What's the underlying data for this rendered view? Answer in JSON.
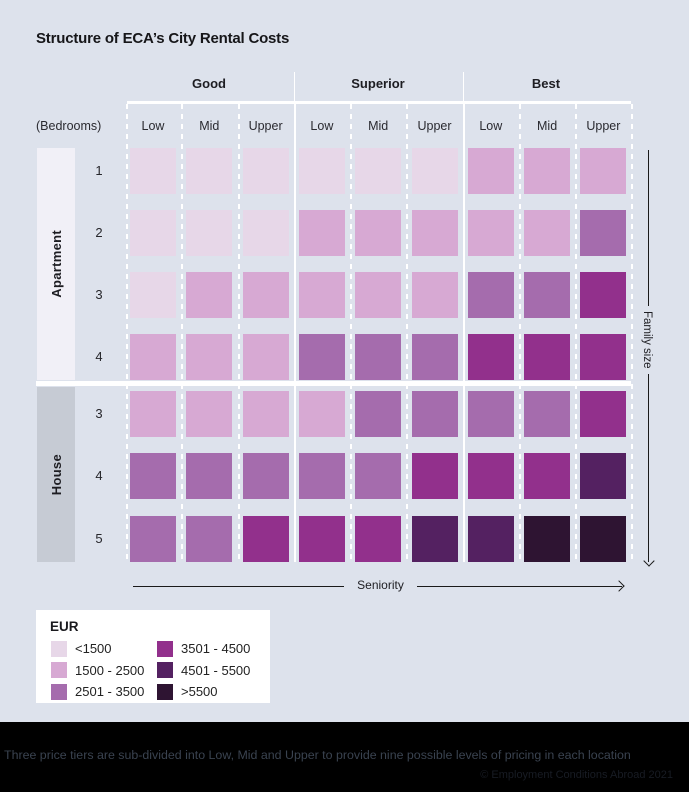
{
  "title": "Structure of ECA’s City Rental Costs",
  "chart_data": {
    "type": "heatmap",
    "title": "Structure of ECA’s City Rental Costs",
    "col_groups": [
      "Good",
      "Superior",
      "Best"
    ],
    "col_subs": [
      "Low",
      "Mid",
      "Upper"
    ],
    "columns": [
      "Good Low",
      "Good Mid",
      "Good Upper",
      "Superior Low",
      "Superior Mid",
      "Superior Upper",
      "Best Low",
      "Best Mid",
      "Best Upper"
    ],
    "row_axis_label": "(Bedrooms)",
    "x_axis_label": "Seniority",
    "y_axis_label": "Family size",
    "sections": [
      {
        "name": "Apartment",
        "rows": [
          {
            "bedrooms": "1",
            "bands": [
              1,
              1,
              1,
              1,
              1,
              1,
              2,
              2,
              2
            ]
          },
          {
            "bedrooms": "2",
            "bands": [
              1,
              1,
              1,
              2,
              2,
              2,
              2,
              2,
              3
            ]
          },
          {
            "bedrooms": "3",
            "bands": [
              1,
              2,
              2,
              2,
              2,
              2,
              3,
              3,
              4
            ]
          },
          {
            "bedrooms": "4",
            "bands": [
              2,
              2,
              2,
              3,
              3,
              3,
              4,
              4,
              4
            ]
          }
        ]
      },
      {
        "name": "House",
        "rows": [
          {
            "bedrooms": "3",
            "bands": [
              2,
              2,
              2,
              2,
              3,
              3,
              3,
              3,
              4
            ]
          },
          {
            "bedrooms": "4",
            "bands": [
              3,
              3,
              3,
              3,
              3,
              4,
              4,
              4,
              5
            ]
          },
          {
            "bedrooms": "5",
            "bands": [
              3,
              3,
              4,
              4,
              4,
              5,
              5,
              6,
              6
            ]
          }
        ]
      }
    ],
    "legend": {
      "title": "EUR",
      "position": "bottom-left",
      "entries": [
        {
          "band": 1,
          "label": "<1500",
          "color": "#e7d7e8"
        },
        {
          "band": 2,
          "label": "1500 - 2500",
          "color": "#d7a9d3"
        },
        {
          "band": 3,
          "label": "2501 - 3500",
          "color": "#a56cad"
        },
        {
          "band": 4,
          "label": "3501 - 4500",
          "color": "#92308c"
        },
        {
          "band": 5,
          "label": "4501 - 5500",
          "color": "#542161"
        },
        {
          "band": 6,
          "label": ">5500",
          "color": "#2e1432"
        }
      ]
    }
  },
  "footer": {
    "note": "Three price tiers are sub-divided into Low, Mid and Upper to provide nine possible levels of pricing in each location",
    "copyright": "© Employment Conditions Abroad 2021"
  },
  "colors": {
    "background": "#dde2ec",
    "apartment_strip": "#f1f0f7",
    "house_strip": "#c6cbd4",
    "footer_bg": "#000000",
    "footer_text": "#3a4350",
    "copyright_text": "#181c24"
  }
}
